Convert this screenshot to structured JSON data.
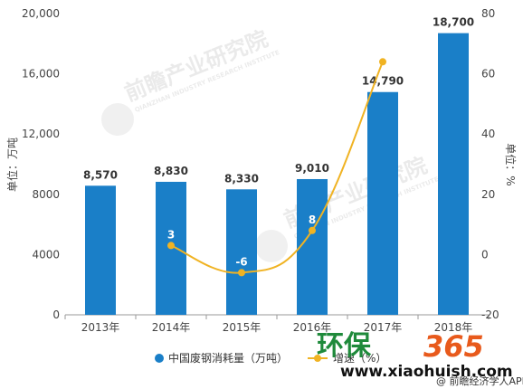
{
  "chart_data": {
    "type": "bar",
    "categories": [
      "2013年",
      "2014年",
      "2015年",
      "2016年",
      "2017年",
      "2018年"
    ],
    "series": [
      {
        "name": "中国废钢消耗量（万吨）",
        "type": "bar",
        "axis": "left",
        "values": [
          8570,
          8830,
          8330,
          9010,
          14790,
          18700
        ],
        "labels": [
          "8,570",
          "8,830",
          "8,330",
          "9,010",
          "14,790",
          "18,700"
        ],
        "color": "#1a7fc8"
      },
      {
        "name": "增速（%）",
        "type": "line",
        "axis": "right",
        "values": [
          null,
          3,
          -6,
          8,
          64,
          null
        ],
        "labels": [
          "",
          "3",
          "-6",
          "8",
          "64",
          ""
        ],
        "color": "#f0b323"
      }
    ],
    "ylabel": "单位：万吨",
    "y2label": "单位：%",
    "ylim": [
      0,
      20000
    ],
    "y2lim": [
      -20,
      80
    ],
    "yticks": [
      "0",
      "4000",
      "8000",
      "12,000",
      "16,000",
      "20,000"
    ],
    "y2ticks": [
      "-20",
      "0",
      "20",
      "40",
      "60",
      "80"
    ],
    "grid": false,
    "legend_position": "bottom"
  },
  "watermark": {
    "brand": "前瞻产业研究院",
    "subtitle": "QIANZHAN INDUSTRY RESEARCH INSTITUTE"
  },
  "branding": {
    "logo_text": "环保",
    "logo_number": "365",
    "url": "www.xiaohuish.com",
    "app_text": "@ 前瞻经济学人APP"
  }
}
